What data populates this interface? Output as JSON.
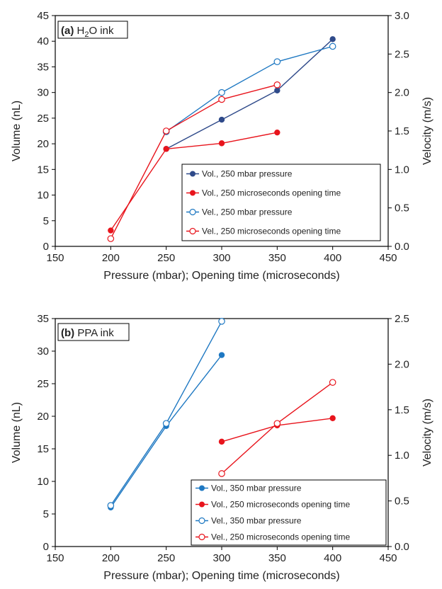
{
  "chart_data": [
    {
      "type": "line",
      "panel_label_bold": "(a)",
      "panel_label_text": "H",
      "panel_label_sub": "2",
      "panel_label_tail": "O ink",
      "xlabel": "Pressure (mbar); Opening time (microseconds)",
      "ylabel": "Volume (nL)",
      "y2label": "Velocity (m/s)",
      "xlim": [
        150,
        450
      ],
      "ylim": [
        0,
        45
      ],
      "y2lim": [
        0,
        3.0
      ],
      "xticks": [
        "150",
        "200",
        "250",
        "300",
        "350",
        "400",
        "450"
      ],
      "yticks": [
        "0",
        "5",
        "10",
        "15",
        "20",
        "25",
        "30",
        "35",
        "40",
        "45"
      ],
      "y2ticks": [
        "0.0",
        "0.5",
        "1.0",
        "1.5",
        "2.0",
        "2.5",
        "3.0"
      ],
      "legend_position": "bottom-right",
      "series": [
        {
          "name": "Vol., 250 mbar pressure",
          "axis": "left",
          "color": "#2f4a8a",
          "marker": "filled",
          "x": [
            250,
            300,
            350,
            400
          ],
          "y": [
            19.0,
            24.7,
            30.4,
            40.4
          ]
        },
        {
          "name": "Vol., 250 microseconds opening time",
          "axis": "left",
          "color": "#e8141c",
          "marker": "filled",
          "x": [
            200,
            250,
            300,
            350
          ],
          "y": [
            3.1,
            19.0,
            20.1,
            22.2
          ]
        },
        {
          "name": "Vel., 250 mbar pressure",
          "axis": "right",
          "color": "#1e78c2",
          "marker": "open",
          "x": [
            250,
            300,
            350,
            400
          ],
          "y": [
            1.49,
            2.0,
            2.4,
            2.6
          ]
        },
        {
          "name": "Vel., 250 microseconds opening time",
          "axis": "right",
          "color": "#e8141c",
          "marker": "open",
          "x": [
            200,
            250,
            300,
            350
          ],
          "y": [
            0.1,
            1.5,
            1.91,
            2.1
          ]
        }
      ]
    },
    {
      "type": "line",
      "panel_label_bold": "(b)",
      "panel_label_text": "PPA ink",
      "panel_label_sub": "",
      "panel_label_tail": "",
      "xlabel": "Pressure (mbar); Opening time (microseconds)",
      "ylabel": "Volume (nL)",
      "y2label": "Velocity (m/s)",
      "xlim": [
        150,
        450
      ],
      "ylim": [
        0,
        35
      ],
      "y2lim": [
        0,
        2.5
      ],
      "xticks": [
        "150",
        "200",
        "250",
        "300",
        "350",
        "400",
        "450"
      ],
      "yticks": [
        "0",
        "5",
        "10",
        "15",
        "20",
        "25",
        "30",
        "35"
      ],
      "y2ticks": [
        "0.0",
        "0.5",
        "1.0",
        "1.5",
        "2.0",
        "2.5"
      ],
      "legend_position": "bottom-right",
      "series": [
        {
          "name": "Vol., 350 mbar pressure",
          "axis": "left",
          "color": "#1e78c2",
          "marker": "filled",
          "x": [
            200,
            250,
            300
          ],
          "y": [
            6.0,
            18.5,
            29.4
          ]
        },
        {
          "name": "Vol., 250 microseconds opening time",
          "axis": "left",
          "color": "#e8141c",
          "marker": "filled",
          "x": [
            300,
            350,
            400
          ],
          "y": [
            16.1,
            18.6,
            19.7
          ]
        },
        {
          "name": "Vel., 350 mbar pressure",
          "axis": "right",
          "color": "#1e78c2",
          "marker": "open",
          "x": [
            200,
            250,
            300
          ],
          "y": [
            0.45,
            1.35,
            2.47
          ]
        },
        {
          "name": "Vel., 250 microseconds opening time",
          "axis": "right",
          "color": "#e8141c",
          "marker": "open",
          "x": [
            300,
            350,
            400
          ],
          "y": [
            0.8,
            1.35,
            1.8
          ]
        }
      ]
    }
  ]
}
